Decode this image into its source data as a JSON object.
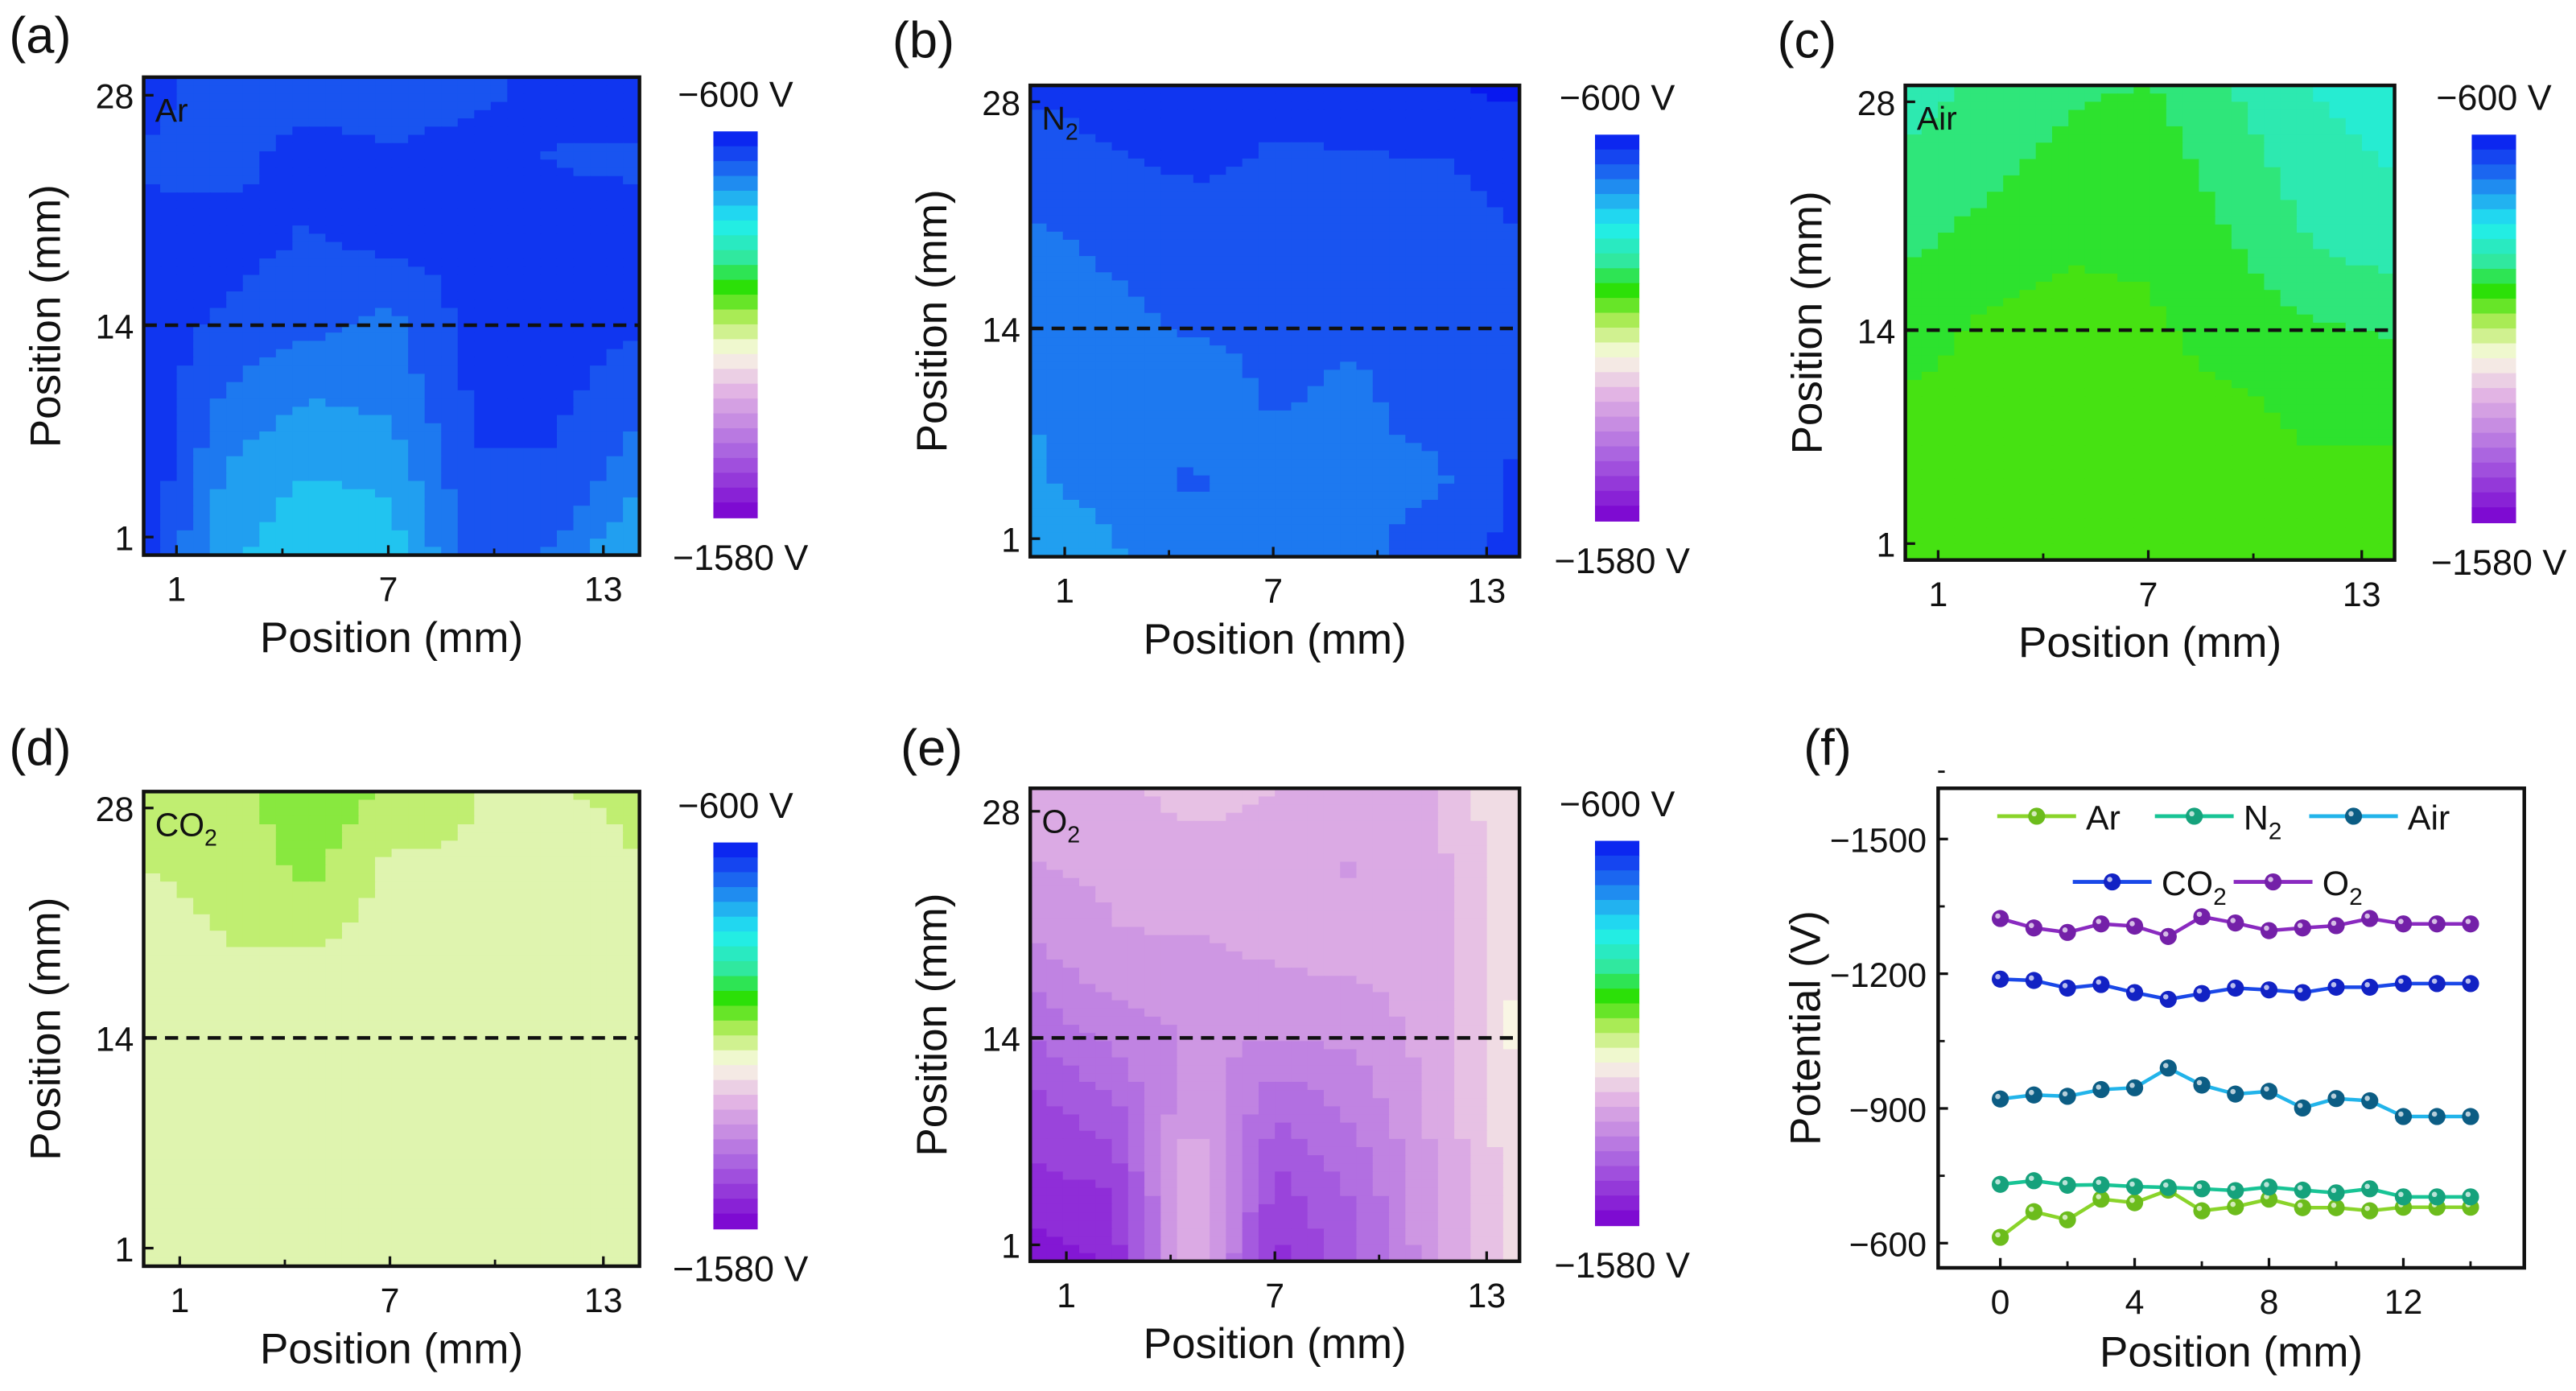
{
  "colormap": {
    "stops": [
      {
        "v": -600,
        "c": "#0818f0"
      },
      {
        "v": -680,
        "c": "#1a58f0"
      },
      {
        "v": -760,
        "c": "#22a8f0"
      },
      {
        "v": -830,
        "c": "#20eef0"
      },
      {
        "v": -920,
        "c": "#30e8a0"
      },
      {
        "v": -1000,
        "c": "#2ce000"
      },
      {
        "v": -1080,
        "c": "#b8ec60"
      },
      {
        "v": -1160,
        "c": "#fafae4"
      },
      {
        "v": -1260,
        "c": "#e2b4e4"
      },
      {
        "v": -1420,
        "c": "#a860e0"
      },
      {
        "v": -1580,
        "c": "#7800d0"
      }
    ],
    "levels": 26
  },
  "chart_data": [
    {
      "type": "heatmap",
      "panel": "(a)",
      "gas": {
        "text": "Ar",
        "sub": ""
      },
      "xlabel": "Position (mm)",
      "ylabel": "Position (mm)",
      "xticks": [
        "1",
        "7",
        "13"
      ],
      "yticks": [
        "28",
        "14",
        "1"
      ],
      "colorbar": {
        "max_label": "−600 V",
        "min_label": "−1580 V",
        "range": [
          -600,
          -1580
        ]
      },
      "reference_line_y": 14,
      "grid_coarse_top_to_bottom": [
        [
          -640,
          -680,
          -680,
          -690,
          -670,
          -640,
          -640
        ],
        [
          -660,
          -670,
          -640,
          -650,
          -640,
          -660,
          -660
        ],
        [
          -650,
          -640,
          -660,
          -640,
          -650,
          -640,
          -650
        ],
        [
          -640,
          -660,
          -680,
          -700,
          -640,
          -630,
          -650
        ],
        [
          -620,
          -700,
          -730,
          -720,
          -650,
          -650,
          -680
        ],
        [
          -620,
          -740,
          -770,
          -760,
          -660,
          -660,
          -720
        ],
        [
          -640,
          -760,
          -800,
          -790,
          -680,
          -700,
          -780
        ]
      ]
    },
    {
      "type": "heatmap",
      "panel": "(b)",
      "gas": {
        "text": "N",
        "sub": "2"
      },
      "xlabel": "Position (mm)",
      "ylabel": "Position (mm)",
      "xticks": [
        "1",
        "7",
        "13"
      ],
      "yticks": [
        "28",
        "14",
        "1"
      ],
      "colorbar": {
        "max_label": "−600 V",
        "min_label": "−1580 V",
        "range": [
          -600,
          -1580
        ]
      },
      "reference_line_y": 14,
      "grid_coarse_top_to_bottom": [
        [
          -650,
          -640,
          -640,
          -650,
          -640,
          -620,
          -610
        ],
        [
          -680,
          -660,
          -650,
          -660,
          -660,
          -660,
          -640
        ],
        [
          -700,
          -690,
          -680,
          -680,
          -670,
          -680,
          -660
        ],
        [
          -700,
          -700,
          -690,
          -690,
          -690,
          -680,
          -670
        ],
        [
          -730,
          -700,
          -710,
          -690,
          -700,
          -680,
          -660
        ],
        [
          -740,
          -710,
          -690,
          -720,
          -700,
          -700,
          -650
        ],
        [
          -770,
          -740,
          -700,
          -720,
          -700,
          -680,
          -640
        ]
      ]
    },
    {
      "type": "heatmap",
      "panel": "(c)",
      "gas": {
        "text": "Air",
        "sub": ""
      },
      "xlabel": "Position (mm)",
      "ylabel": "Position (mm)",
      "xticks": [
        "1",
        "7",
        "13"
      ],
      "yticks": [
        "28",
        "14",
        "1"
      ],
      "colorbar": {
        "max_label": "−600 V",
        "min_label": "−1580 V",
        "range": [
          -600,
          -1580
        ]
      },
      "reference_line_y": 14,
      "grid_coarse_top_to_bottom": [
        [
          -900,
          -930,
          -950,
          -960,
          -920,
          -880,
          -860
        ],
        [
          -930,
          -950,
          -970,
          -980,
          -940,
          -900,
          -880
        ],
        [
          -950,
          -970,
          -990,
          -990,
          -960,
          -920,
          -900
        ],
        [
          -980,
          -1000,
          -1010,
          -1000,
          -980,
          -960,
          -950
        ],
        [
          -1000,
          -1010,
          -1020,
          -1010,
          -1000,
          -990,
          -990
        ],
        [
          -1010,
          -1020,
          -1020,
          -1010,
          -1000,
          -1000,
          -1000
        ],
        [
          -1000,
          -1010,
          -1020,
          -1010,
          -1000,
          -1000,
          -1000
        ]
      ]
    },
    {
      "type": "heatmap",
      "panel": "(d)",
      "gas": {
        "text": "CO",
        "sub": "2"
      },
      "xlabel": "Position (mm)",
      "ylabel": "Position (mm)",
      "xticks": [
        "1",
        "7",
        "13"
      ],
      "yticks": [
        "28",
        "14",
        "1"
      ],
      "colorbar": {
        "max_label": "−600 V",
        "min_label": "−1580 V",
        "range": [
          -600,
          -1580
        ]
      },
      "reference_line_y": 14,
      "grid_coarse_top_to_bottom": [
        [
          -1100,
          -1090,
          -1040,
          -1080,
          -1110,
          -1110,
          -1100
        ],
        [
          -1110,
          -1100,
          -1060,
          -1120,
          -1110,
          -1130,
          -1110
        ],
        [
          -1120,
          -1110,
          -1110,
          -1130,
          -1120,
          -1110,
          -1110
        ],
        [
          -1120,
          -1130,
          -1120,
          -1130,
          -1140,
          -1120,
          -1110
        ],
        [
          -1130,
          -1140,
          -1130,
          -1120,
          -1130,
          -1130,
          -1120
        ],
        [
          -1130,
          -1140,
          -1130,
          -1130,
          -1130,
          -1120,
          -1120
        ],
        [
          -1140,
          -1130,
          -1130,
          -1120,
          -1130,
          -1130,
          -1120
        ]
      ]
    },
    {
      "type": "heatmap",
      "panel": "(e)",
      "gas": {
        "text": "O",
        "sub": "2"
      },
      "xlabel": "Position (mm)",
      "ylabel": "Position (mm)",
      "xticks": [
        "1",
        "7",
        "13"
      ],
      "yticks": [
        "28",
        "14",
        "1"
      ],
      "colorbar": {
        "max_label": "−600 V",
        "min_label": "−1580 V",
        "range": [
          -600,
          -1580
        ]
      },
      "reference_line_y": 14,
      "grid_coarse_top_to_bottom": [
        [
          -1280,
          -1270,
          -1240,
          -1260,
          -1270,
          -1260,
          -1180
        ],
        [
          -1300,
          -1290,
          -1280,
          -1290,
          -1300,
          -1270,
          -1180
        ],
        [
          -1340,
          -1300,
          -1300,
          -1290,
          -1280,
          -1280,
          -1180
        ],
        [
          -1400,
          -1350,
          -1330,
          -1320,
          -1320,
          -1280,
          -1170
        ],
        [
          -1460,
          -1420,
          -1300,
          -1400,
          -1360,
          -1280,
          -1180
        ],
        [
          -1500,
          -1480,
          -1260,
          -1460,
          -1400,
          -1300,
          -1200
        ],
        [
          -1540,
          -1520,
          -1250,
          -1500,
          -1420,
          -1300,
          -1200
        ]
      ]
    },
    {
      "type": "line",
      "panel": "(f)",
      "xlabel": "Position (mm)",
      "ylabel": "Potential (V)",
      "xlim": [
        -1.85,
        15.6
      ],
      "ylim": [
        -545,
        -1613
      ],
      "xticks": [
        0,
        4,
        8,
        12
      ],
      "yticks": [
        -600,
        -900,
        -1200,
        -1500
      ],
      "xtick_labels": [
        "0",
        "4",
        "8",
        "12"
      ],
      "ytick_labels": [
        "−600",
        "−900",
        "−1200",
        "−1500"
      ],
      "x": [
        0,
        1,
        2,
        3,
        4,
        5,
        6,
        7,
        8,
        9,
        10,
        11,
        12,
        13,
        14
      ],
      "series": [
        {
          "name": {
            "text": "Ar",
            "sub": ""
          },
          "line": "#8ad42a",
          "marker": "#6cbc1c",
          "values": [
            -613,
            -670,
            -652,
            -698,
            -690,
            -718,
            -672,
            -681,
            -698,
            -679,
            -679,
            -672,
            -680,
            -680,
            -680
          ]
        },
        {
          "name": {
            "text": "N",
            "sub": "2"
          },
          "line": "#18c495",
          "marker": "#16a27c",
          "values": [
            -731,
            -739,
            -729,
            -730,
            -726,
            -724,
            -721,
            -717,
            -725,
            -718,
            -712,
            -721,
            -703,
            -703,
            -703
          ]
        },
        {
          "name": {
            "text": "Air",
            "sub": ""
          },
          "line": "#22b4ea",
          "marker": "#0c5d84",
          "values": [
            -921,
            -930,
            -927,
            -942,
            -946,
            -990,
            -952,
            -932,
            -938,
            -901,
            -922,
            -917,
            -882,
            -882,
            -882
          ]
        },
        {
          "name": {
            "text": "CO",
            "sub": "2"
          },
          "line": "#1a48e8",
          "marker": "#1222c4",
          "values": [
            -1188,
            -1185,
            -1168,
            -1176,
            -1158,
            -1143,
            -1156,
            -1168,
            -1164,
            -1158,
            -1170,
            -1170,
            -1178,
            -1178,
            -1178
          ]
        },
        {
          "name": {
            "text": "O",
            "sub": "2"
          },
          "line": "#8a2ac0",
          "marker": "#7420a8",
          "values": [
            -1323,
            -1302,
            -1292,
            -1311,
            -1306,
            -1283,
            -1327,
            -1313,
            -1296,
            -1302,
            -1307,
            -1323,
            -1311,
            -1311,
            -1311
          ]
        }
      ],
      "legend": "top"
    }
  ]
}
